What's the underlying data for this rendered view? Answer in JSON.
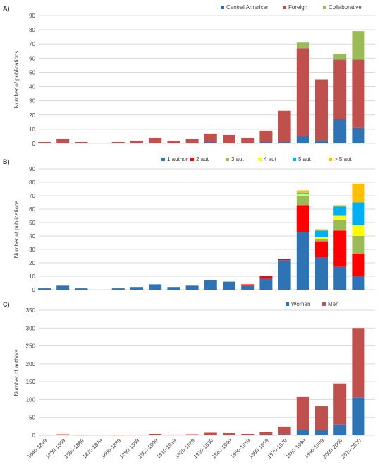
{
  "chart_data": [
    {
      "panel_label": "A)",
      "type": "bar",
      "stacked": true,
      "categories": [
        "1840-1849",
        "1850-1859",
        "1860-1869",
        "1870-1879",
        "1880-1889",
        "1890-1899",
        "1900-1909",
        "1910-1919",
        "1920-1929",
        "1930-1939",
        "1940-1949",
        "1950-1959",
        "1960-1969",
        "1970-1979",
        "1980-1989",
        "1990-1999",
        "2000-2009",
        "2010-2020"
      ],
      "ylabel": "Number of publications",
      "ylim": [
        0,
        90
      ],
      "yticks": [
        0,
        10,
        20,
        30,
        40,
        50,
        60,
        70,
        80,
        90
      ],
      "grid": true,
      "legend_position": "top-right",
      "series": [
        {
          "name": "Central American",
          "color": "#2e74b5",
          "values": [
            0,
            0,
            0,
            0,
            0,
            0,
            0,
            0,
            0,
            1,
            0,
            0,
            1,
            1,
            5,
            2,
            17,
            11
          ]
        },
        {
          "name": "Foreign",
          "color": "#c0504d",
          "values": [
            1,
            3,
            1,
            0,
            1,
            2,
            4,
            2,
            3,
            6,
            6,
            4,
            8,
            22,
            62,
            43,
            42,
            48
          ]
        },
        {
          "name": "Collaborative",
          "color": "#9bbb59",
          "values": [
            0,
            0,
            0,
            0,
            0,
            0,
            0,
            0,
            0,
            0,
            0,
            0,
            0,
            0,
            4,
            0,
            4,
            20
          ]
        }
      ]
    },
    {
      "panel_label": "B)",
      "type": "bar",
      "stacked": true,
      "categories": [
        "1840-1849",
        "1850-1859",
        "1860-1869",
        "1870-1879",
        "1880-1889",
        "1890-1899",
        "1900-1909",
        "1910-1919",
        "1920-1929",
        "1930-1939",
        "1940-1949",
        "1950-1959",
        "1960-1969",
        "1970-1979",
        "1980-1989",
        "1990-1999",
        "2000-2009",
        "2010-2020"
      ],
      "ylabel": "Number of publications",
      "ylim": [
        0,
        90
      ],
      "yticks": [
        0,
        10,
        20,
        30,
        40,
        50,
        60,
        70,
        80,
        90
      ],
      "grid": true,
      "legend_position": "top-right",
      "series": [
        {
          "name": "1 author",
          "color": "#2e74b5",
          "values": [
            1,
            3,
            1,
            0,
            1,
            2,
            4,
            2,
            3,
            7,
            6,
            3,
            8,
            22,
            43,
            24,
            17,
            10
          ]
        },
        {
          "name": "2 aut",
          "color": "#ff0000",
          "values": [
            0,
            0,
            0,
            0,
            0,
            0,
            0,
            0,
            0,
            0,
            0,
            1,
            2,
            1,
            20,
            12,
            27,
            17
          ]
        },
        {
          "name": "3 aut",
          "color": "#9bbb59",
          "values": [
            0,
            0,
            0,
            0,
            0,
            0,
            0,
            0,
            0,
            0,
            0,
            0,
            0,
            0,
            7,
            2,
            8,
            13
          ]
        },
        {
          "name": "4 aut",
          "color": "#ffff00",
          "values": [
            0,
            0,
            0,
            0,
            0,
            0,
            0,
            0,
            0,
            0,
            0,
            0,
            0,
            0,
            1,
            1,
            3,
            8
          ]
        },
        {
          "name": "5 aut",
          "color": "#00b0f0",
          "values": [
            0,
            0,
            0,
            0,
            0,
            0,
            0,
            0,
            0,
            0,
            0,
            0,
            0,
            0,
            1,
            5,
            7,
            17
          ]
        },
        {
          "name": "> 5 aut",
          "color": "#ffc000",
          "values": [
            0,
            0,
            0,
            0,
            0,
            0,
            0,
            0,
            0,
            0,
            0,
            0,
            0,
            0,
            2,
            1,
            1,
            14
          ]
        }
      ]
    },
    {
      "panel_label": "C)",
      "type": "bar",
      "stacked": true,
      "categories": [
        "1840-1849",
        "1850-1859",
        "1860-1869",
        "1870-1879",
        "1880-1889",
        "1890-1899",
        "1900-1909",
        "1910-1919",
        "1920-1929",
        "1930-1939",
        "1940-1949",
        "1950-1959",
        "1960-1969",
        "1970-1979",
        "1980-1989",
        "1990-1999",
        "2000-2009",
        "2010-2020"
      ],
      "ylabel": "Number of authors",
      "ylim": [
        0,
        350
      ],
      "yticks": [
        0,
        50,
        100,
        150,
        200,
        250,
        300,
        350
      ],
      "grid": true,
      "legend_position": "top-right",
      "series": [
        {
          "name": "Women",
          "color": "#2e74b5",
          "values": [
            0,
            0,
            0,
            0,
            0,
            0,
            0,
            0,
            0,
            0,
            0,
            0,
            1,
            2,
            15,
            14,
            30,
            105
          ]
        },
        {
          "name": "Men",
          "color": "#c0504d",
          "values": [
            1,
            3,
            1,
            0,
            1,
            2,
            4,
            2,
            3,
            7,
            6,
            4,
            8,
            22,
            92,
            67,
            115,
            195
          ]
        }
      ]
    }
  ]
}
